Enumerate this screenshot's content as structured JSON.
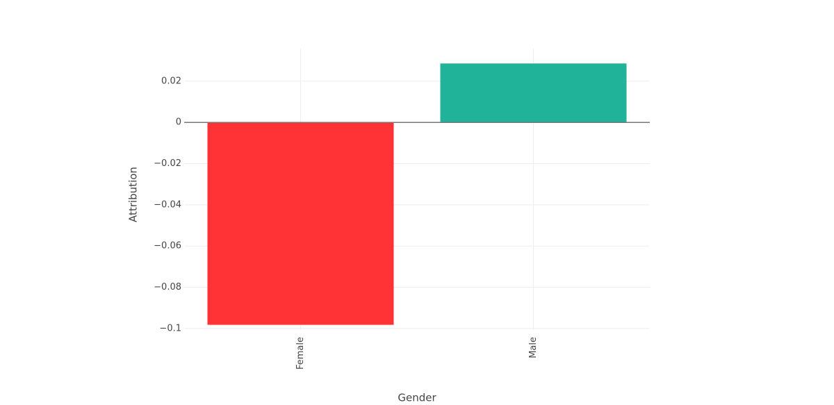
{
  "chart_data": {
    "type": "bar",
    "x_label": "Gender",
    "y_label": "Attribution",
    "categories": [
      "Female",
      "Male"
    ],
    "values": [
      -0.0982,
      0.0286
    ],
    "colors": [
      "#ff3336",
      "#20b39a"
    ],
    "ylim": [
      -0.1007,
      0.0358
    ],
    "yticks": [
      {
        "value": -0.1,
        "label": "−0.1"
      },
      {
        "value": -0.08,
        "label": "−0.08"
      },
      {
        "value": -0.06,
        "label": "−0.06"
      },
      {
        "value": -0.04,
        "label": "−0.04"
      },
      {
        "value": -0.02,
        "label": "−0.02"
      },
      0,
      0.02
    ],
    "grid": true
  }
}
